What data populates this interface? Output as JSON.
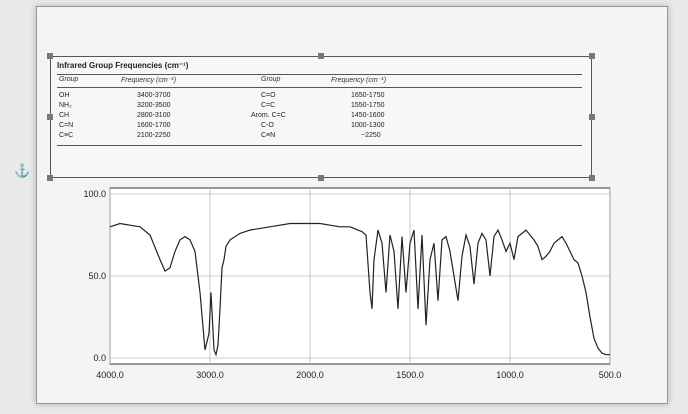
{
  "table": {
    "title": "Infrared Group Frequencies (cm⁻¹)",
    "headers": [
      "Group",
      "Frequency (cm⁻¹)",
      "Group",
      "Frequency (cm⁻¹)"
    ],
    "left_groups": [
      "OH",
      "NH₂",
      "CH",
      "C=N",
      "C≡C"
    ],
    "left_freqs": [
      "3400-3700",
      "3200-3500",
      "2800-3100",
      "1600-1700",
      "2100-2250"
    ],
    "right_groups": [
      "C=O",
      "C=C",
      "Arom. C=C",
      "C-O",
      "C≡N"
    ],
    "right_freqs": [
      "1650-1750",
      "1550-1750",
      "1450-1600",
      "1000-1300",
      "~2250"
    ]
  },
  "icons": {
    "anchor": "anchor-icon"
  },
  "chart_data": {
    "type": "line",
    "x_ticks": [
      "4000.0",
      "3000.0",
      "2000.0",
      "1500.0",
      "1000.0",
      "500.0"
    ],
    "y_ticks": [
      "100.0",
      "50.0",
      "0.0"
    ],
    "ylim": [
      0,
      100
    ],
    "xlabel": "",
    "ylabel": "",
    "series": [
      {
        "x": [
          4000,
          3900,
          3800,
          3700,
          3600,
          3500,
          3450,
          3400,
          3350,
          3300,
          3250,
          3200,
          3150,
          3100,
          3050,
          3010,
          2990,
          2960,
          2940,
          2920,
          2900,
          2880,
          2860,
          2840,
          2800,
          2700,
          2600,
          2400,
          2200,
          2000,
          1950,
          1900,
          1850,
          1800,
          1780,
          1760,
          1740,
          1720,
          1700,
          1690,
          1680,
          1660,
          1640,
          1620,
          1600,
          1580,
          1560,
          1540,
          1520,
          1500,
          1480,
          1460,
          1440,
          1420,
          1400,
          1380,
          1360,
          1340,
          1320,
          1300,
          1280,
          1260,
          1240,
          1220,
          1200,
          1180,
          1160,
          1140,
          1120,
          1100,
          1080,
          1060,
          1040,
          1020,
          1000,
          980,
          960,
          940,
          920,
          900,
          880,
          860,
          840,
          820,
          800,
          780,
          760,
          740,
          720,
          700,
          680,
          660,
          640,
          620,
          600,
          580,
          560,
          540,
          520,
          500
        ],
        "y": [
          80,
          82,
          81,
          80,
          75,
          60,
          53,
          55,
          65,
          72,
          74,
          72,
          65,
          40,
          5,
          15,
          40,
          5,
          2,
          8,
          30,
          55,
          60,
          68,
          72,
          76,
          78,
          80,
          82,
          82,
          82,
          81,
          80,
          80,
          79,
          78,
          77,
          75,
          40,
          30,
          60,
          78,
          70,
          40,
          75,
          65,
          30,
          74,
          40,
          70,
          78,
          30,
          75,
          20,
          60,
          70,
          35,
          72,
          74,
          65,
          50,
          35,
          62,
          75,
          68,
          45,
          70,
          76,
          72,
          50,
          74,
          78,
          72,
          65,
          70,
          60,
          74,
          76,
          78,
          75,
          72,
          68,
          60,
          62,
          65,
          70,
          72,
          74,
          70,
          65,
          60,
          58,
          50,
          40,
          25,
          12,
          6,
          3,
          2,
          2
        ]
      }
    ]
  }
}
